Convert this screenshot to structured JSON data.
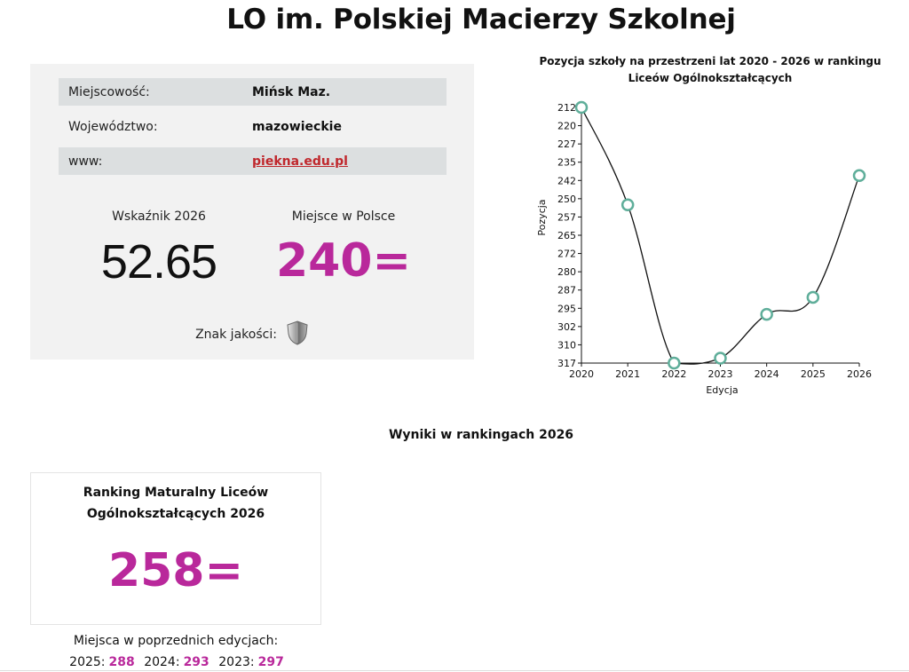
{
  "page": {
    "title": "LO im. Polskiej Macierzy Szkolnej"
  },
  "info": {
    "rows": [
      {
        "label": "Miejscowość:",
        "value": "Mińsk Maz."
      },
      {
        "label": "Województwo:",
        "value": "mazowieckie"
      },
      {
        "label": "www:",
        "value": "piekna.edu.pl"
      }
    ]
  },
  "metrics": {
    "index_label": "Wskaźnik 2026",
    "index_value": "52.65",
    "rank_label": "Miejsce w Polsce",
    "rank_value": "240=",
    "quality_label": "Znak jakości:"
  },
  "chart_data": {
    "type": "line",
    "title": "Pozycja szkoły na przestrzeni lat 2020 - 2026 w rankingu Liceów Ogólnokształcących",
    "xlabel": "Edycja",
    "ylabel": "Pozycja",
    "categories": [
      "2020",
      "2021",
      "2022",
      "2023",
      "2024",
      "2025",
      "2026"
    ],
    "values": [
      212,
      252,
      317,
      315,
      297,
      290,
      240
    ],
    "y_ticks": [
      "212",
      "220",
      "227",
      "235",
      "242",
      "250",
      "257",
      "265",
      "272",
      "280",
      "287",
      "295",
      "302",
      "310",
      "317"
    ],
    "ylim": [
      212,
      317
    ],
    "y_inverted": true,
    "line_color": "#111111",
    "marker_color": "#5fae9a"
  },
  "results": {
    "section_title": "Wyniki w rankingach 2026",
    "card_title_line1": "Ranking Maturalny Liceów",
    "card_title_line2": "Ogólnokształcących 2026",
    "card_value": "258=",
    "prev_title": "Miejsca w poprzednich edycjach:",
    "prev": [
      {
        "year": "2025:",
        "rank": "288"
      },
      {
        "year": "2024:",
        "rank": "293"
      },
      {
        "year": "2023:",
        "rank": "297"
      }
    ]
  },
  "colors": {
    "accent": "#b9289b",
    "link": "#c0282d",
    "panel": "#f2f2f2",
    "row_shade": "#dcdfe0"
  }
}
